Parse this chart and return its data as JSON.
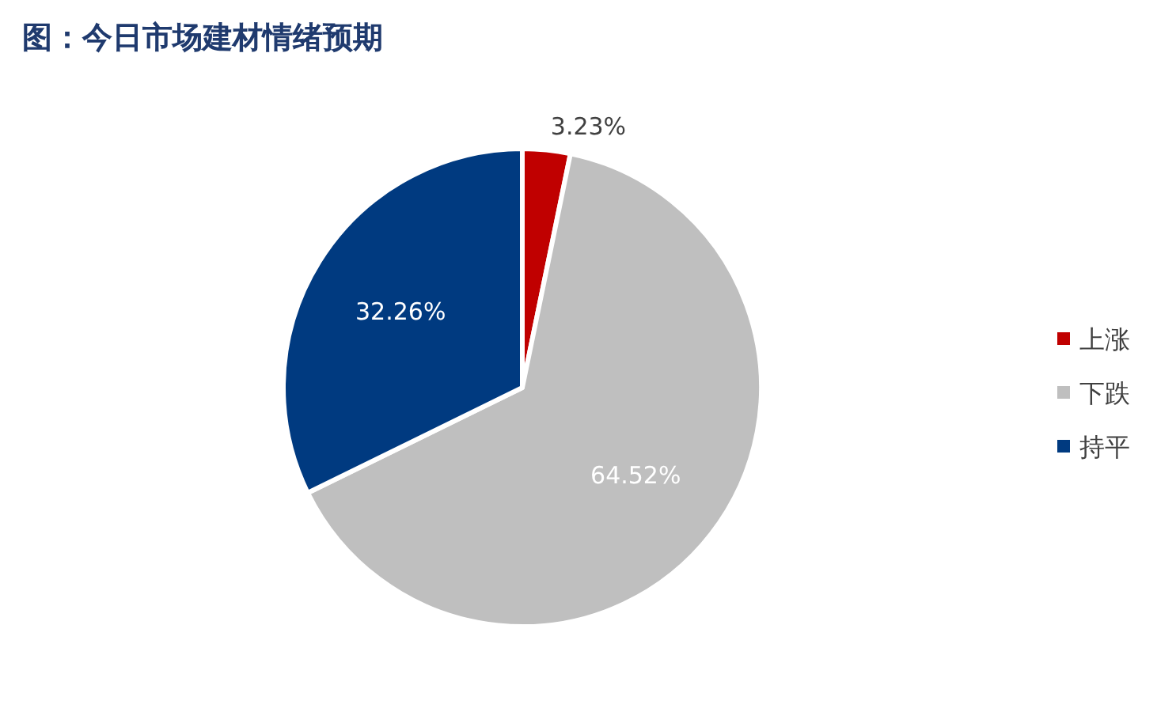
{
  "chart_data": {
    "type": "pie",
    "title": "图：今日市场建材情绪预期",
    "categories": [
      "上涨",
      "下跌",
      "持平"
    ],
    "values": [
      3.23,
      64.52,
      32.26
    ],
    "colors": [
      "#c00000",
      "#bfbfbf",
      "#003a80"
    ],
    "value_labels": [
      "3.23%",
      "64.52%",
      "32.26%"
    ],
    "legend": "right"
  }
}
